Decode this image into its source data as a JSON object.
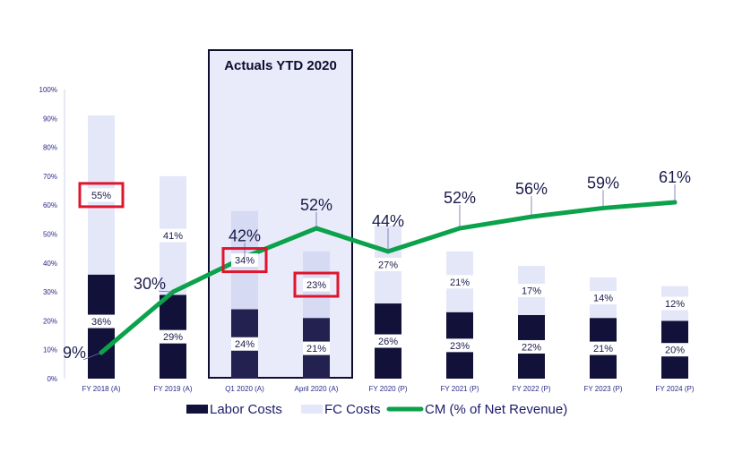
{
  "chart_data": {
    "type": "bar",
    "stacked": true,
    "categories": [
      "FY 2018 (A)",
      "FY 2019 (A)",
      "Q1 2020 (A)",
      "April 2020 (A)",
      "FY 2020 (P)",
      "FY 2021 (P)",
      "FY 2022 (P)",
      "FY 2023 (P)",
      "FY 2024 (P)"
    ],
    "series": [
      {
        "name": "Labor Costs",
        "type": "bar",
        "color": "#12113a",
        "values": [
          36,
          29,
          24,
          21,
          26,
          23,
          22,
          21,
          20
        ],
        "labels": [
          "36%",
          "29%",
          "24%",
          "21%",
          "26%",
          "23%",
          "22%",
          "21%",
          "20%"
        ]
      },
      {
        "name": "FC Costs",
        "type": "bar",
        "color": "#e3e7f8",
        "values": [
          55,
          41,
          34,
          23,
          27,
          21,
          17,
          14,
          12
        ],
        "labels": [
          "55%",
          "41%",
          "34%",
          "23%",
          "27%",
          "21%",
          "17%",
          "14%",
          "12%"
        ]
      },
      {
        "name": "CM (% of Net Revenue)",
        "type": "line",
        "color": "#0aa24a",
        "values": [
          9,
          30,
          42,
          52,
          44,
          52,
          56,
          59,
          61
        ],
        "labels": [
          "9%",
          "30%",
          "42%",
          "52%",
          "44%",
          "52%",
          "56%",
          "59%",
          "61%"
        ]
      }
    ],
    "ylim": [
      0,
      100
    ],
    "yticks": [
      "0%",
      "10%",
      "20%",
      "30%",
      "40%",
      "50%",
      "60%",
      "70%",
      "80%",
      "90%",
      "100%"
    ],
    "xlabel": "",
    "ylabel": "",
    "highlight_box": {
      "title": "Actuals YTD 2020",
      "categories": [
        "Q1 2020 (A)",
        "April 2020 (A)"
      ]
    },
    "callout_boxes": [
      "FY 2018 (A) FC Costs",
      "Q1 2020 (A) FC Costs",
      "April 2020 (A) FC Costs"
    ],
    "callout_color": "#e0142c",
    "legend": {
      "position": "bottom",
      "entries": [
        "Labor Costs",
        "FC Costs",
        "CM (% of Net Revenue)"
      ]
    },
    "grid": false
  }
}
